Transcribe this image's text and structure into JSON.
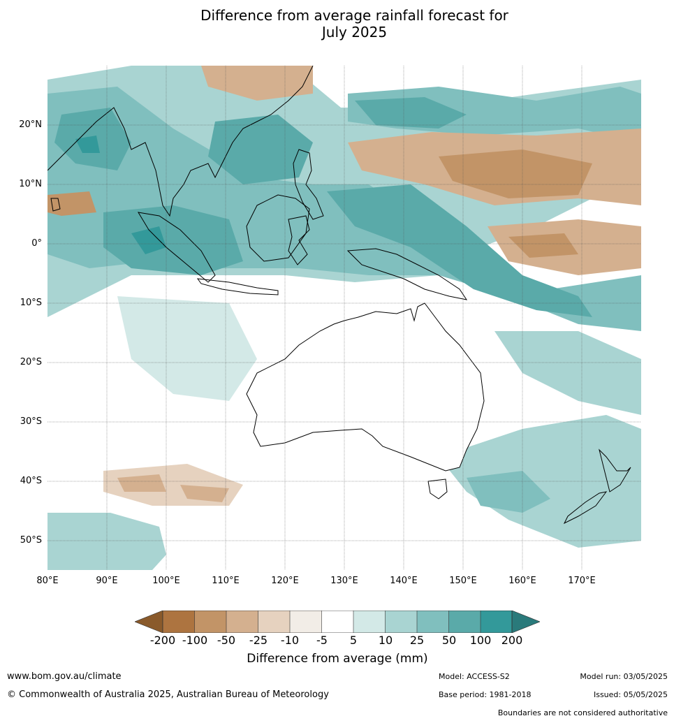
{
  "title": {
    "line1": "Difference from average rainfall forecast for",
    "line2": "July 2025"
  },
  "map": {
    "region": "Indian Ocean, Maritime Continent, Australia and Western Pacific",
    "lat_labels": [
      "20°N",
      "10°N",
      "0°",
      "10°S",
      "20°S",
      "30°S",
      "40°S",
      "50°S"
    ],
    "lon_labels": [
      "80°E",
      "90°E",
      "100°E",
      "110°E",
      "120°E",
      "130°E",
      "140°E",
      "150°E",
      "160°E",
      "170°E"
    ],
    "lat_range": [
      -55,
      30
    ],
    "lon_range": [
      80,
      180
    ],
    "gridlines": true
  },
  "colorbar": {
    "title": "Difference from average (mm)",
    "ticks": [
      "-200",
      "-100",
      "-50",
      "-25",
      "-10",
      "-5",
      "5",
      "10",
      "25",
      "50",
      "100",
      "200"
    ],
    "colors": [
      "#8a5a2b",
      "#ad7440",
      "#c29467",
      "#d4b08f",
      "#e6d2bf",
      "#f2ede7",
      "#ffffff",
      "#d3e9e7",
      "#a9d4d2",
      "#80bfbe",
      "#5aaaa9",
      "#33999a",
      "#2a7a7b"
    ]
  },
  "footer": {
    "url": "www.bom.gov.au/climate",
    "copyright": "© Commonwealth of Australia 2025, Australian Bureau of Meteorology",
    "model": "Model: ACCESS-S2",
    "base_period": "Base period: 1981-2018",
    "model_run": "Model run: 03/05/2025",
    "issued": "Issued: 05/05/2025",
    "disclaimer": "Boundaries are not considered authoritative"
  }
}
